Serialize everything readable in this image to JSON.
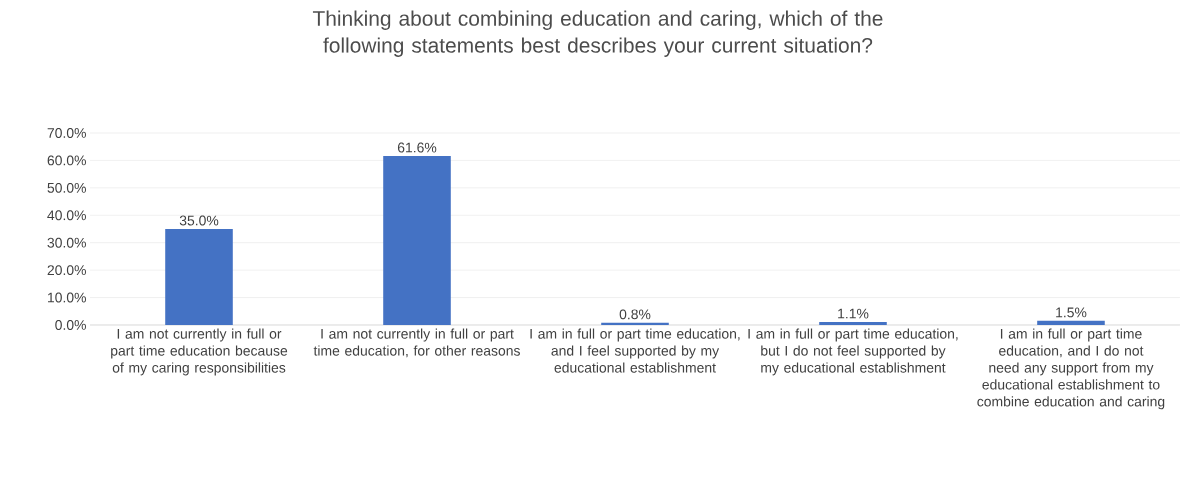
{
  "chart_data": {
    "type": "bar",
    "title": "Thinking about combining education and caring, which of the following statements best describes your current situation?",
    "categories": [
      "I am not currently in full or part time education because of my caring responsibilities",
      "I am not currently in full or part time education, for other reasons",
      "I am in full or part time education, and I feel supported by my educational establishment",
      "I am in full or part time education, but I do not feel supported by my educational establishment",
      "I am in full or part time education, and I do not need any support from my educational establishment to combine education and caring"
    ],
    "values": [
      35.0,
      61.6,
      0.8,
      1.1,
      1.5
    ],
    "value_labels": [
      "35.0%",
      "61.6%",
      "0.8%",
      "1.1%",
      "1.5%"
    ],
    "color": "#4472c4",
    "ylim": [
      0,
      70
    ],
    "yticks": [
      {
        "value": 0,
        "label": "0.0%"
      },
      {
        "value": 10,
        "label": "10.0%"
      },
      {
        "value": 20,
        "label": "20.0%"
      },
      {
        "value": 30,
        "label": "30.0%"
      },
      {
        "value": 40,
        "label": "40.0%"
      },
      {
        "value": 50,
        "label": "50.0%"
      },
      {
        "value": 60,
        "label": "60.0%"
      },
      {
        "value": 70,
        "label": "70.0%"
      }
    ],
    "grid": "y"
  }
}
